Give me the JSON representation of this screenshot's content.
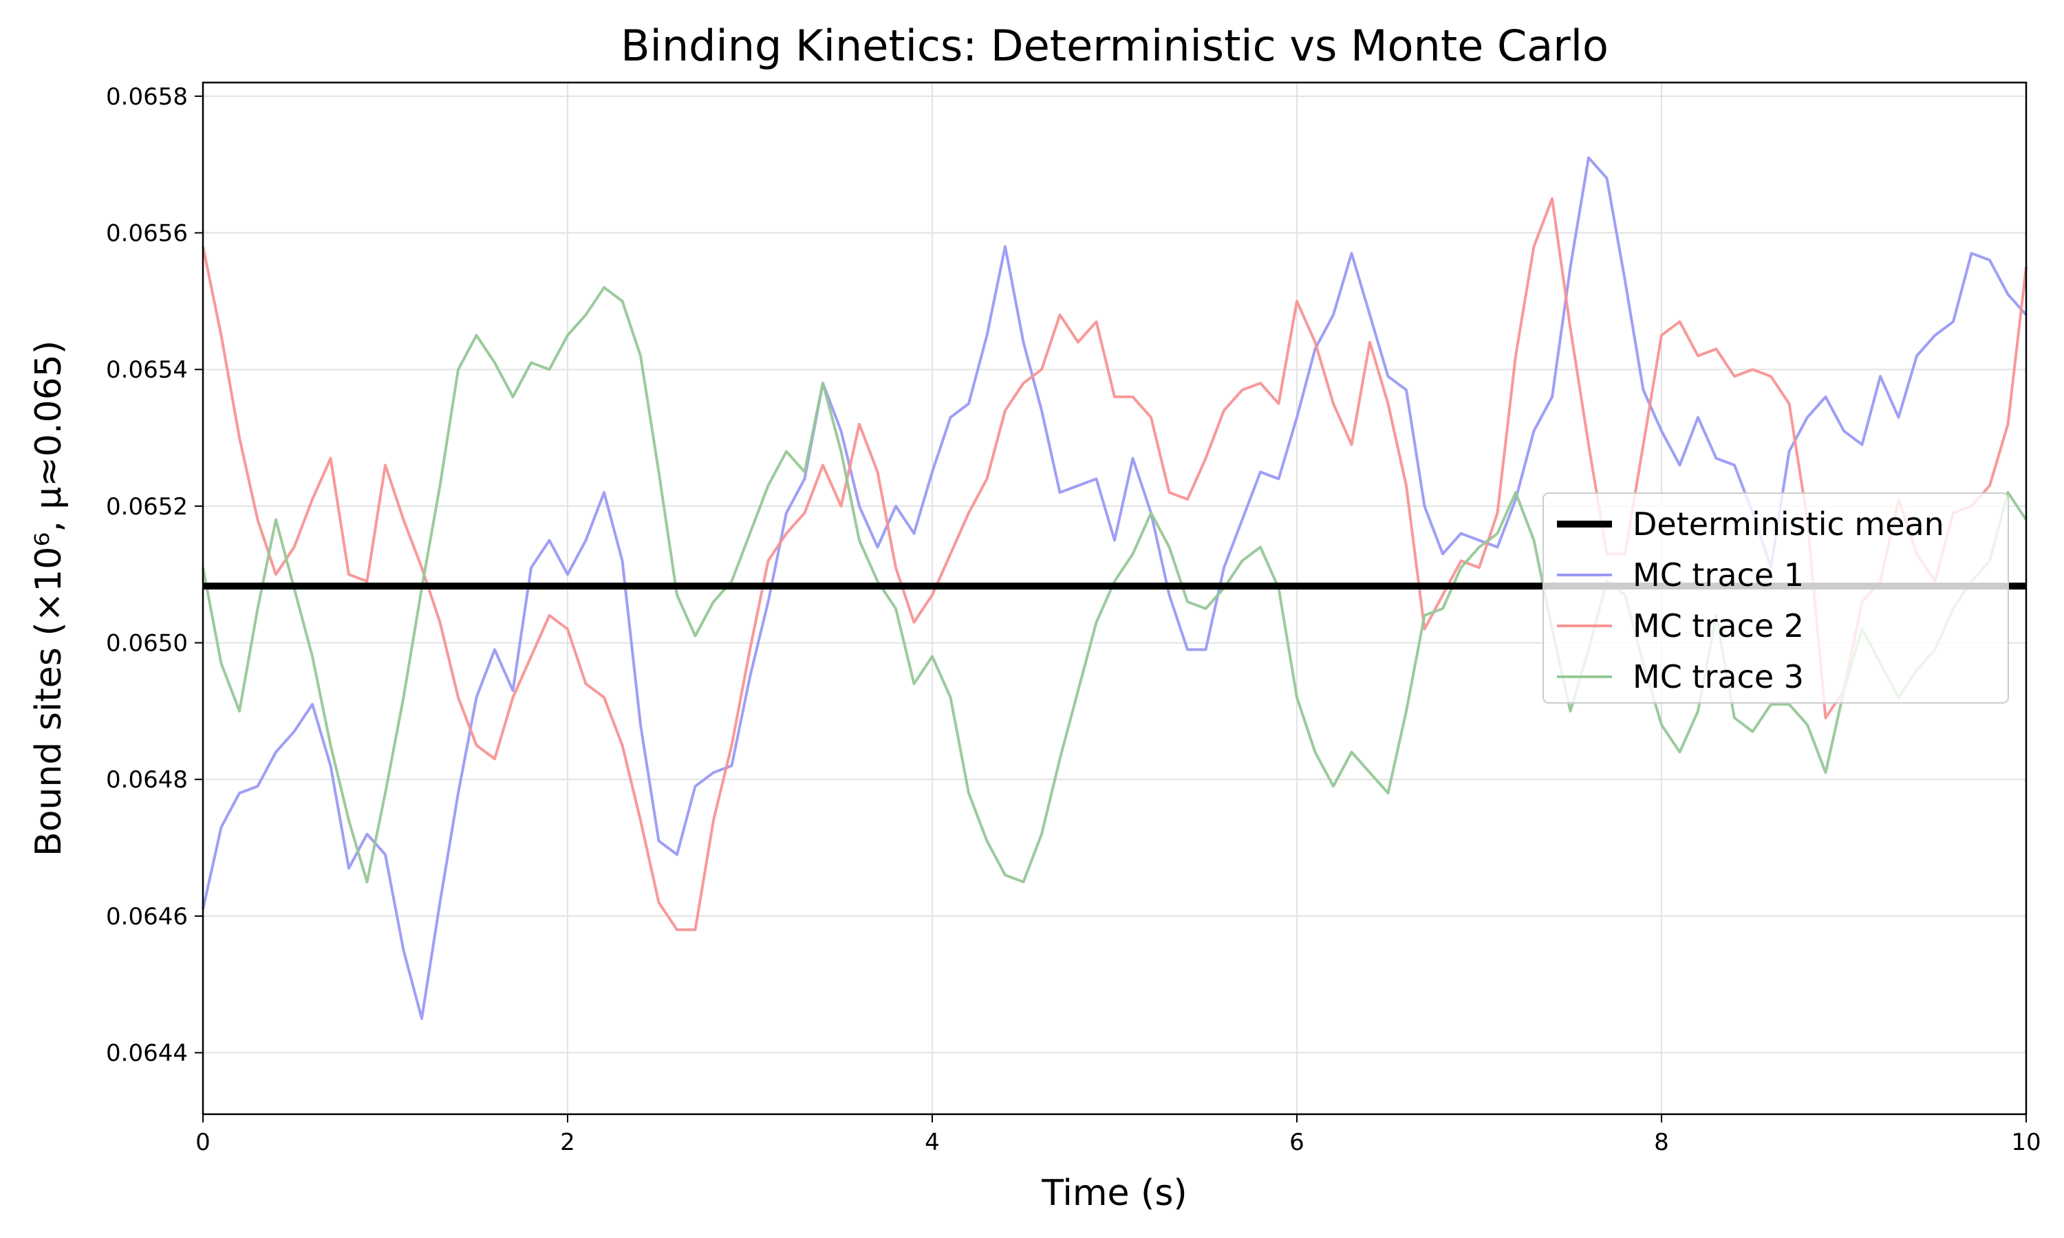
{
  "chart_data": {
    "type": "line",
    "title": "Binding Kinetics: Deterministic vs Monte Carlo",
    "xlabel": "Time (s)",
    "ylabel": "Bound sites (×10⁶, μ≈0.065)",
    "xlim": [
      0,
      10
    ],
    "ylim": [
      0.06431,
      0.06582
    ],
    "x_ticks": [
      0,
      2,
      4,
      6,
      8,
      10
    ],
    "x_tick_labels": [
      "0",
      "2",
      "4",
      "6",
      "8",
      "10"
    ],
    "y_ticks": [
      0.0644,
      0.0646,
      0.0648,
      0.065,
      0.0652,
      0.0654,
      0.0656,
      0.0658
    ],
    "y_tick_labels": [
      "0.0644",
      "0.0646",
      "0.0648",
      "0.0650",
      "0.0652",
      "0.0654",
      "0.0656",
      "0.0658"
    ],
    "grid": true,
    "legend_position": "center-right",
    "series": [
      {
        "name": "Deterministic mean",
        "color": "#000000",
        "style": "thick-solid",
        "x": [
          0,
          10
        ],
        "y": [
          0.065083,
          0.065083
        ]
      },
      {
        "name": "MC trace 1",
        "color": "#9a9af5",
        "x": [
          0.0,
          0.1,
          0.2,
          0.3,
          0.4,
          0.5,
          0.6,
          0.7,
          0.8,
          0.9,
          1.0,
          1.1,
          1.2,
          1.3,
          1.4,
          1.5,
          1.6,
          1.7,
          1.8,
          1.9,
          2.0,
          2.1,
          2.2,
          2.3,
          2.4,
          2.5,
          2.6,
          2.7,
          2.8,
          2.9,
          3.0,
          3.1,
          3.2,
          3.3,
          3.4,
          3.5,
          3.6,
          3.7,
          3.8,
          3.9,
          4.0,
          4.1,
          4.2,
          4.3,
          4.4,
          4.5,
          4.6,
          4.7,
          4.8,
          4.9,
          5.0,
          5.1,
          5.2,
          5.3,
          5.4,
          5.5,
          5.6,
          5.7,
          5.8,
          5.9,
          6.0,
          6.1,
          6.2,
          6.3,
          6.4,
          6.5,
          6.6,
          6.7,
          6.8,
          6.9,
          7.0,
          7.1,
          7.2,
          7.3,
          7.4,
          7.5,
          7.6,
          7.7,
          7.8,
          7.9,
          8.0,
          8.1,
          8.2,
          8.3,
          8.4,
          8.5,
          8.6,
          8.7,
          8.8,
          8.9,
          9.0,
          9.1,
          9.2,
          9.3,
          9.4,
          9.5,
          9.6,
          9.7,
          9.8,
          9.9,
          10.0
        ],
        "y": [
          0.06461,
          0.06473,
          0.06478,
          0.06479,
          0.06484,
          0.06487,
          0.06491,
          0.06482,
          0.06467,
          0.06472,
          0.06469,
          0.06455,
          0.06445,
          0.06462,
          0.06478,
          0.06492,
          0.06499,
          0.06493,
          0.06511,
          0.06515,
          0.0651,
          0.06515,
          0.06522,
          0.06512,
          0.06488,
          0.06471,
          0.06469,
          0.06479,
          0.06481,
          0.06482,
          0.06495,
          0.06506,
          0.06519,
          0.06524,
          0.06538,
          0.06531,
          0.0652,
          0.06514,
          0.0652,
          0.06516,
          0.06525,
          0.06533,
          0.06535,
          0.06545,
          0.06558,
          0.06544,
          0.06534,
          0.06522,
          0.06523,
          0.06524,
          0.06515,
          0.06527,
          0.06519,
          0.06507,
          0.06499,
          0.06499,
          0.06511,
          0.06518,
          0.06525,
          0.06524,
          0.06533,
          0.06543,
          0.06548,
          0.06557,
          0.06548,
          0.06539,
          0.06537,
          0.0652,
          0.06513,
          0.06516,
          0.06515,
          0.06514,
          0.06521,
          0.06531,
          0.06536,
          0.06555,
          0.06571,
          0.06568,
          0.06553,
          0.06537,
          0.06531,
          0.06526,
          0.06533,
          0.06527,
          0.06526,
          0.06519,
          0.06511,
          0.06528,
          0.06533,
          0.06536,
          0.06531,
          0.06529,
          0.06539,
          0.06533,
          0.06542,
          0.06545,
          0.06547,
          0.06557,
          0.06556,
          0.06551,
          0.06548
        ]
      },
      {
        "name": "MC trace 2",
        "color": "#f89494",
        "x": [
          0.0,
          0.1,
          0.2,
          0.3,
          0.4,
          0.5,
          0.6,
          0.7,
          0.8,
          0.9,
          1.0,
          1.1,
          1.2,
          1.3,
          1.4,
          1.5,
          1.6,
          1.7,
          1.8,
          1.9,
          2.0,
          2.1,
          2.2,
          2.3,
          2.4,
          2.5,
          2.6,
          2.7,
          2.8,
          2.9,
          3.0,
          3.1,
          3.2,
          3.3,
          3.4,
          3.5,
          3.6,
          3.7,
          3.8,
          3.9,
          4.0,
          4.1,
          4.2,
          4.3,
          4.4,
          4.5,
          4.6,
          4.7,
          4.8,
          4.9,
          5.0,
          5.1,
          5.2,
          5.3,
          5.4,
          5.5,
          5.6,
          5.7,
          5.8,
          5.9,
          6.0,
          6.1,
          6.2,
          6.3,
          6.4,
          6.5,
          6.6,
          6.7,
          6.8,
          6.9,
          7.0,
          7.1,
          7.2,
          7.3,
          7.4,
          7.5,
          7.6,
          7.7,
          7.8,
          7.9,
          8.0,
          8.1,
          8.2,
          8.3,
          8.4,
          8.5,
          8.6,
          8.7,
          8.8,
          8.9,
          9.0,
          9.1,
          9.2,
          9.3,
          9.4,
          9.5,
          9.6,
          9.7,
          9.8,
          9.9,
          10.0
        ],
        "y": [
          0.06558,
          0.06545,
          0.0653,
          0.06518,
          0.0651,
          0.06514,
          0.06521,
          0.06527,
          0.0651,
          0.06509,
          0.06526,
          0.06518,
          0.06511,
          0.06503,
          0.06492,
          0.06485,
          0.06483,
          0.06492,
          0.06498,
          0.06504,
          0.06502,
          0.06494,
          0.06492,
          0.06485,
          0.06474,
          0.06462,
          0.06458,
          0.06458,
          0.06474,
          0.06485,
          0.06499,
          0.06512,
          0.06516,
          0.06519,
          0.06526,
          0.0652,
          0.06532,
          0.06525,
          0.06511,
          0.06503,
          0.06507,
          0.06513,
          0.06519,
          0.06524,
          0.06534,
          0.06538,
          0.0654,
          0.06548,
          0.06544,
          0.06547,
          0.06536,
          0.06536,
          0.06533,
          0.06522,
          0.06521,
          0.06527,
          0.06534,
          0.06537,
          0.06538,
          0.06535,
          0.0655,
          0.06544,
          0.06535,
          0.06529,
          0.06544,
          0.06535,
          0.06523,
          0.06502,
          0.06507,
          0.06512,
          0.06511,
          0.06519,
          0.06542,
          0.06558,
          0.06565,
          0.06546,
          0.06529,
          0.06513,
          0.06513,
          0.06529,
          0.06545,
          0.06547,
          0.06542,
          0.06543,
          0.06539,
          0.0654,
          0.06539,
          0.06535,
          0.06518,
          0.06489,
          0.06493,
          0.06506,
          0.06509,
          0.06521,
          0.06513,
          0.06509,
          0.06519,
          0.0652,
          0.06523,
          0.06532,
          0.06555
        ]
      },
      {
        "name": "MC trace 3",
        "color": "#97c797",
        "x": [
          0.0,
          0.1,
          0.2,
          0.3,
          0.4,
          0.5,
          0.6,
          0.7,
          0.8,
          0.9,
          1.0,
          1.1,
          1.2,
          1.3,
          1.4,
          1.5,
          1.6,
          1.7,
          1.8,
          1.9,
          2.0,
          2.1,
          2.2,
          2.3,
          2.4,
          2.5,
          2.6,
          2.7,
          2.8,
          2.9,
          3.0,
          3.1,
          3.2,
          3.3,
          3.4,
          3.5,
          3.6,
          3.7,
          3.8,
          3.9,
          4.0,
          4.1,
          4.2,
          4.3,
          4.4,
          4.5,
          4.6,
          4.7,
          4.8,
          4.9,
          5.0,
          5.1,
          5.2,
          5.3,
          5.4,
          5.5,
          5.6,
          5.7,
          5.8,
          5.9,
          6.0,
          6.1,
          6.2,
          6.3,
          6.4,
          6.5,
          6.6,
          6.7,
          6.8,
          6.9,
          7.0,
          7.1,
          7.2,
          7.3,
          7.4,
          7.5,
          7.6,
          7.7,
          7.8,
          7.9,
          8.0,
          8.1,
          8.2,
          8.3,
          8.4,
          8.5,
          8.6,
          8.7,
          8.8,
          8.9,
          9.0,
          9.1,
          9.2,
          9.3,
          9.4,
          9.5,
          9.6,
          9.7,
          9.8,
          9.9,
          10.0
        ],
        "y": [
          0.06511,
          0.06497,
          0.0649,
          0.06505,
          0.06518,
          0.06508,
          0.06498,
          0.06485,
          0.06474,
          0.06465,
          0.06478,
          0.06492,
          0.06508,
          0.06523,
          0.0654,
          0.06545,
          0.06541,
          0.06536,
          0.06541,
          0.0654,
          0.06545,
          0.06548,
          0.06552,
          0.0655,
          0.06542,
          0.06525,
          0.06507,
          0.06501,
          0.06506,
          0.06509,
          0.06516,
          0.06523,
          0.06528,
          0.06525,
          0.06538,
          0.06528,
          0.06515,
          0.06509,
          0.06505,
          0.06494,
          0.06498,
          0.06492,
          0.06478,
          0.06471,
          0.06466,
          0.06465,
          0.06472,
          0.06483,
          0.06493,
          0.06503,
          0.06509,
          0.06513,
          0.06519,
          0.06514,
          0.06506,
          0.06505,
          0.06508,
          0.06512,
          0.06514,
          0.06508,
          0.06492,
          0.06484,
          0.06479,
          0.06484,
          0.06481,
          0.06478,
          0.0649,
          0.06504,
          0.06505,
          0.06511,
          0.06514,
          0.06516,
          0.06522,
          0.06515,
          0.06502,
          0.0649,
          0.06499,
          0.06509,
          0.06507,
          0.06497,
          0.06488,
          0.06484,
          0.0649,
          0.06504,
          0.06489,
          0.06487,
          0.06491,
          0.06491,
          0.06488,
          0.06481,
          0.06493,
          0.06502,
          0.06497,
          0.06492,
          0.06496,
          0.06499,
          0.06505,
          0.06509,
          0.06512,
          0.06522,
          0.06518
        ]
      }
    ]
  }
}
